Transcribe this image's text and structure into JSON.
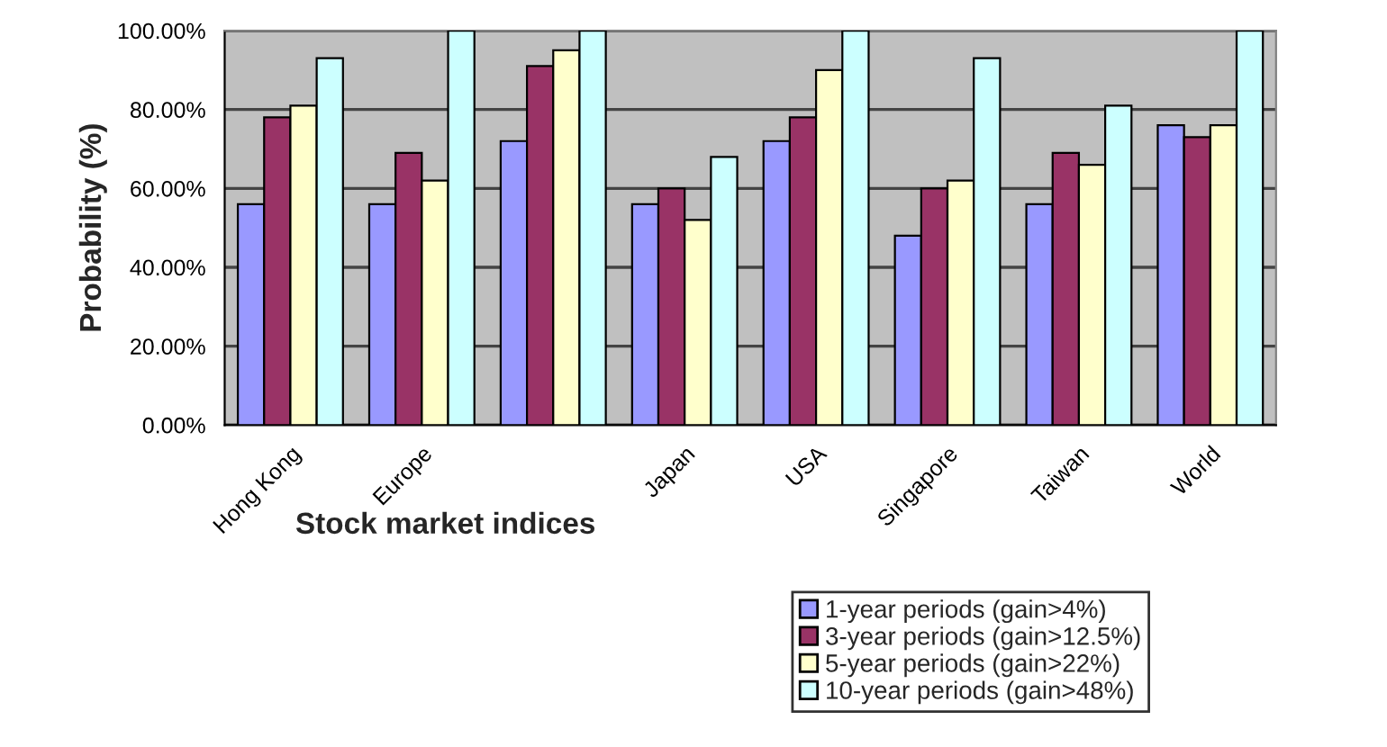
{
  "chart_data": {
    "type": "bar",
    "xlabel": "Stock market indices",
    "ylabel": "Probability (%)",
    "categories": [
      "Hong Kong",
      "Europe",
      null,
      "Japan",
      "USA",
      "Singapore",
      "Taiwan",
      "World"
    ],
    "series": [
      {
        "name": "1-year periods (gain>4%)",
        "color": "#9999ff",
        "values": [
          56,
          56,
          72,
          56,
          72,
          48,
          56,
          76
        ]
      },
      {
        "name": "3-year periods (gain>12.5%)",
        "color": "#993366",
        "values": [
          78,
          69,
          91,
          60,
          78,
          60,
          69,
          73
        ]
      },
      {
        "name": "5-year periods (gain>22%)",
        "color": "#ffffcc",
        "values": [
          81,
          62,
          95,
          52,
          90,
          62,
          66,
          76
        ]
      },
      {
        "name": "10-year periods (gain>48%)",
        "color": "#ccffff",
        "values": [
          93,
          100,
          100,
          68,
          100,
          93,
          81,
          100
        ]
      }
    ],
    "ylim": [
      0,
      100
    ],
    "yticks": [
      {
        "value": 0,
        "label": "0.00%"
      },
      {
        "value": 20,
        "label": "20.00%"
      },
      {
        "value": 40,
        "label": "40.00%"
      },
      {
        "value": 60,
        "label": "60.00%"
      },
      {
        "value": 80,
        "label": "80.00%"
      },
      {
        "value": 100,
        "label": "100.00%"
      }
    ],
    "grid": "y",
    "legend": "bottom right"
  }
}
